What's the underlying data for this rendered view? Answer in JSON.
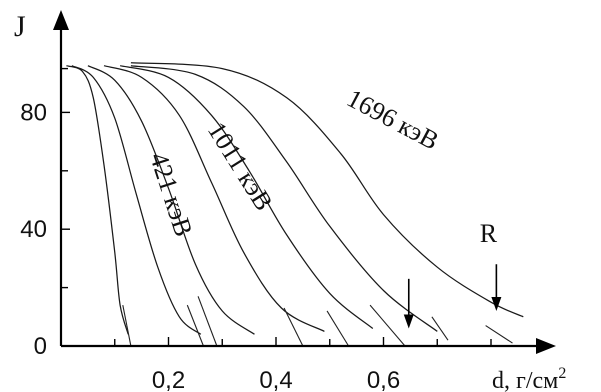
{
  "chart_data": {
    "type": "line",
    "ylabel": "J",
    "xlabel": "d, г/см",
    "xlabel_sup": "2",
    "xlim": [
      0,
      0.9
    ],
    "ylim": [
      0,
      100
    ],
    "x_ticks": [
      {
        "value": 0.2,
        "label": "0,2"
      },
      {
        "value": 0.4,
        "label": "0,4"
      },
      {
        "value": 0.6,
        "label": "0,6"
      }
    ],
    "y_ticks": [
      {
        "value": 0,
        "label": "0"
      },
      {
        "value": 40,
        "label": "40"
      },
      {
        "value": 80,
        "label": "80"
      }
    ],
    "extra_x_ticks": [
      0.1,
      0.3,
      0.5,
      0.7,
      0.8
    ],
    "extra_y_ticks": [
      20,
      60,
      95
    ],
    "series": [
      {
        "x": [
          0.01,
          0.04,
          0.06,
          0.08,
          0.1,
          0.11,
          0.125
        ],
        "y": [
          96,
          94,
          85,
          62,
          32,
          14,
          4
        ]
      },
      {
        "name": "421 кэВ",
        "x": [
          0.02,
          0.06,
          0.1,
          0.14,
          0.18,
          0.22,
          0.26
        ],
        "y": [
          96,
          92,
          78,
          52,
          27,
          10,
          4
        ]
      },
      {
        "x": [
          0.05,
          0.1,
          0.15,
          0.2,
          0.25,
          0.3,
          0.36
        ],
        "y": [
          96,
          91,
          77,
          54,
          28,
          12,
          4
        ]
      },
      {
        "name": "1011 кэВ",
        "x": [
          0.08,
          0.15,
          0.22,
          0.28,
          0.34,
          0.41,
          0.49
        ],
        "y": [
          96,
          92,
          79,
          56,
          32,
          13,
          5
        ]
      },
      {
        "x": [
          0.11,
          0.2,
          0.28,
          0.35,
          0.42,
          0.5,
          0.58
        ],
        "y": [
          96,
          92,
          79,
          60,
          38,
          18,
          6
        ]
      },
      {
        "x": [
          0.13,
          0.25,
          0.34,
          0.42,
          0.5,
          0.6,
          0.7
        ],
        "y": [
          96,
          93,
          82,
          63,
          41,
          19,
          5
        ]
      },
      {
        "name": "1696 кэВ",
        "x": [
          0.13,
          0.3,
          0.42,
          0.52,
          0.6,
          0.7,
          0.8,
          0.86
        ],
        "y": [
          97,
          95,
          85,
          66,
          45,
          27,
          15,
          10
        ]
      }
    ],
    "curve_labels": [
      {
        "text": "421 кэВ",
        "series": 1
      },
      {
        "text": "1011 кэВ",
        "series": 3
      },
      {
        "text": "1696 кэВ",
        "series": 6
      }
    ],
    "annotations": [
      {
        "text": "R",
        "x": 0.81,
        "arrow_from_y": 28,
        "arrow_to_y": 12
      },
      {
        "text": "",
        "x": 0.647,
        "arrow_from_y": 23,
        "arrow_to_y": 6
      }
    ],
    "tangent_marks": [
      {
        "x1": 0.115,
        "y1": 14,
        "x2": 0.13,
        "y2": 0
      },
      {
        "x1": 0.235,
        "y1": 14,
        "x2": 0.265,
        "y2": 0
      },
      {
        "x1": 0.255,
        "y1": 17,
        "x2": 0.29,
        "y2": 0
      },
      {
        "x1": 0.415,
        "y1": 13,
        "x2": 0.45,
        "y2": 0
      },
      {
        "x1": 0.495,
        "y1": 12,
        "x2": 0.535,
        "y2": 0
      },
      {
        "x1": 0.575,
        "y1": 14,
        "x2": 0.64,
        "y2": 0
      },
      {
        "x1": 0.69,
        "y1": 10,
        "x2": 0.72,
        "y2": 2
      },
      {
        "x1": 0.79,
        "y1": 7,
        "x2": 0.84,
        "y2": 1
      }
    ],
    "grid": false,
    "legend": "none"
  }
}
